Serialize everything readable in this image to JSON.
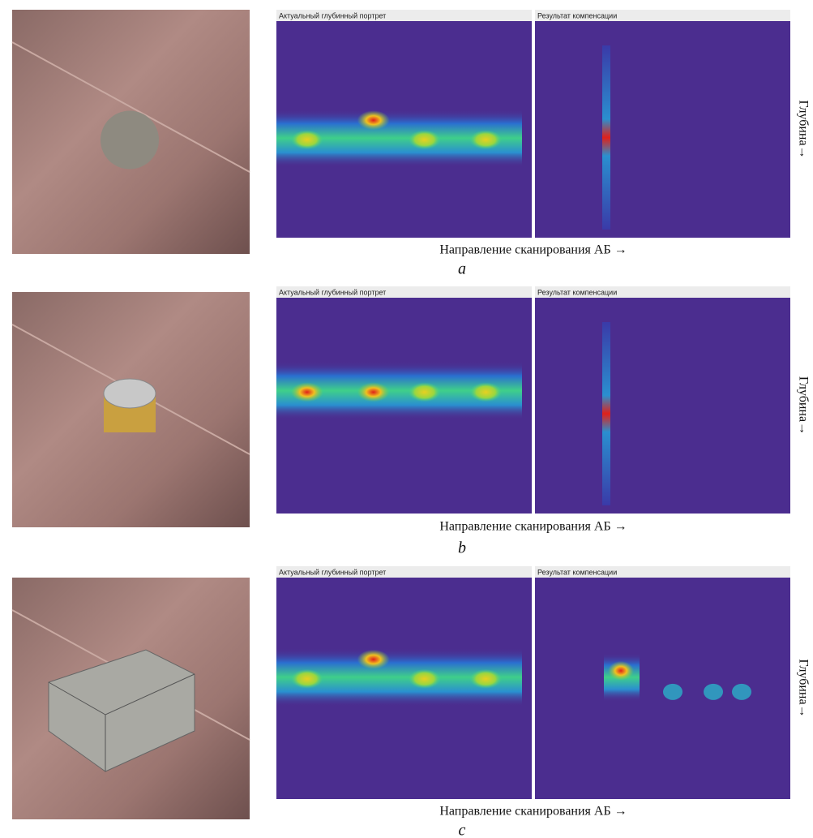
{
  "panels": [
    {
      "left_title": "Актуальный глубинный портрет",
      "right_title": "Результат компенсации",
      "x_label": "Направление сканирования АБ →",
      "y_label": "Глубина→",
      "caption": "a"
    },
    {
      "left_title": "Актуальный глубинный портрет",
      "right_title": "Результат компенсации",
      "x_label": "Направление сканирования АБ →",
      "y_label": "Глубина→",
      "caption": "b"
    },
    {
      "left_title": "Актуальный глубинный портрет",
      "right_title": "Результат компенсации",
      "x_label": "Направление сканирования АБ →",
      "y_label": "Глубина→",
      "caption": "c"
    }
  ]
}
